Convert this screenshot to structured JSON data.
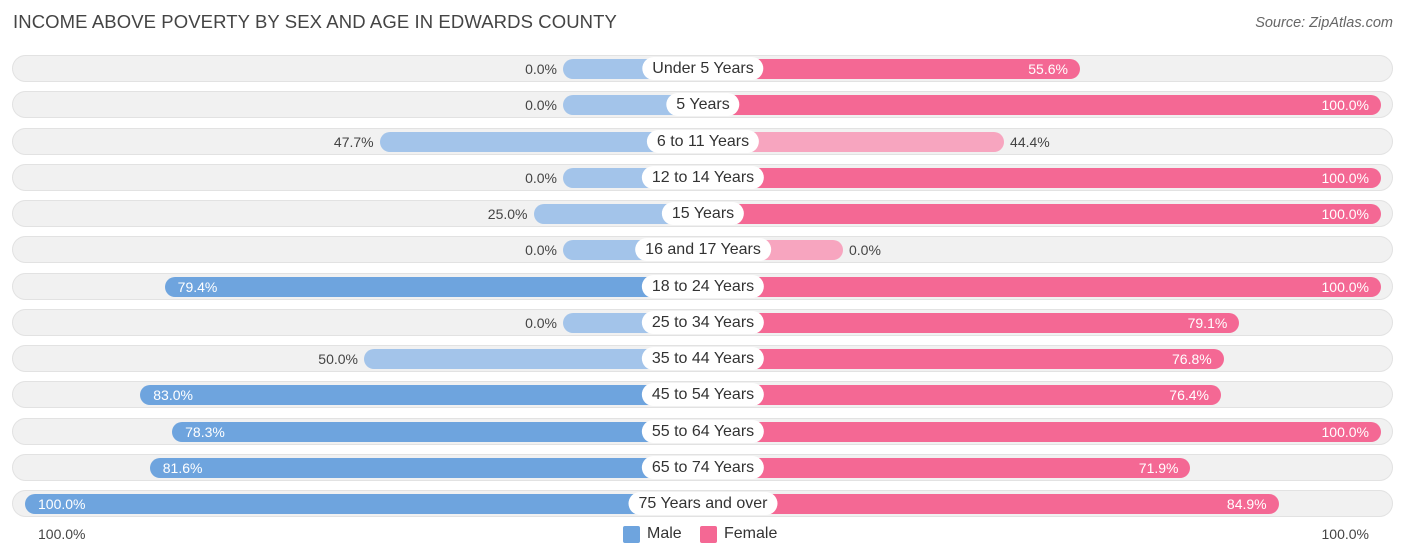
{
  "chart_data": {
    "type": "bar",
    "orientation": "horizontal-diverging",
    "title": "INCOME ABOVE POVERTY BY SEX AND AGE IN EDWARDS COUNTY",
    "source": "Source: ZipAtlas.com",
    "categories": [
      "Under 5 Years",
      "5 Years",
      "6 to 11 Years",
      "12 to 14 Years",
      "15 Years",
      "16 and 17 Years",
      "18 to 24 Years",
      "25 to 34 Years",
      "35 to 44 Years",
      "45 to 54 Years",
      "55 to 64 Years",
      "65 to 74 Years",
      "75 Years and over"
    ],
    "series": [
      {
        "name": "Male",
        "values": [
          0.0,
          0.0,
          47.7,
          0.0,
          25.0,
          0.0,
          79.4,
          0.0,
          50.0,
          83.0,
          78.3,
          81.6,
          100.0
        ],
        "labels": [
          "0.0%",
          "0.0%",
          "47.7%",
          "0.0%",
          "25.0%",
          "0.0%",
          "79.4%",
          "0.0%",
          "50.0%",
          "83.0%",
          "78.3%",
          "81.6%",
          "100.0%"
        ]
      },
      {
        "name": "Female",
        "values": [
          55.6,
          100.0,
          44.4,
          100.0,
          100.0,
          0.0,
          100.0,
          79.1,
          76.8,
          76.4,
          100.0,
          71.9,
          84.9
        ],
        "labels": [
          "55.6%",
          "100.0%",
          "44.4%",
          "100.0%",
          "100.0%",
          "0.0%",
          "100.0%",
          "79.1%",
          "76.8%",
          "76.4%",
          "100.0%",
          "71.9%",
          "84.9%"
        ]
      }
    ],
    "axis": {
      "left_label": "100.0%",
      "right_label": "100.0%",
      "range": [
        0,
        100
      ]
    },
    "legend": [
      {
        "name": "Male"
      },
      {
        "name": "Female"
      }
    ],
    "colors": {
      "male_strong": "#6ea4de",
      "male_light": "#a3c4ea",
      "female_strong": "#f46894",
      "female_light": "#f7a5bf"
    }
  }
}
